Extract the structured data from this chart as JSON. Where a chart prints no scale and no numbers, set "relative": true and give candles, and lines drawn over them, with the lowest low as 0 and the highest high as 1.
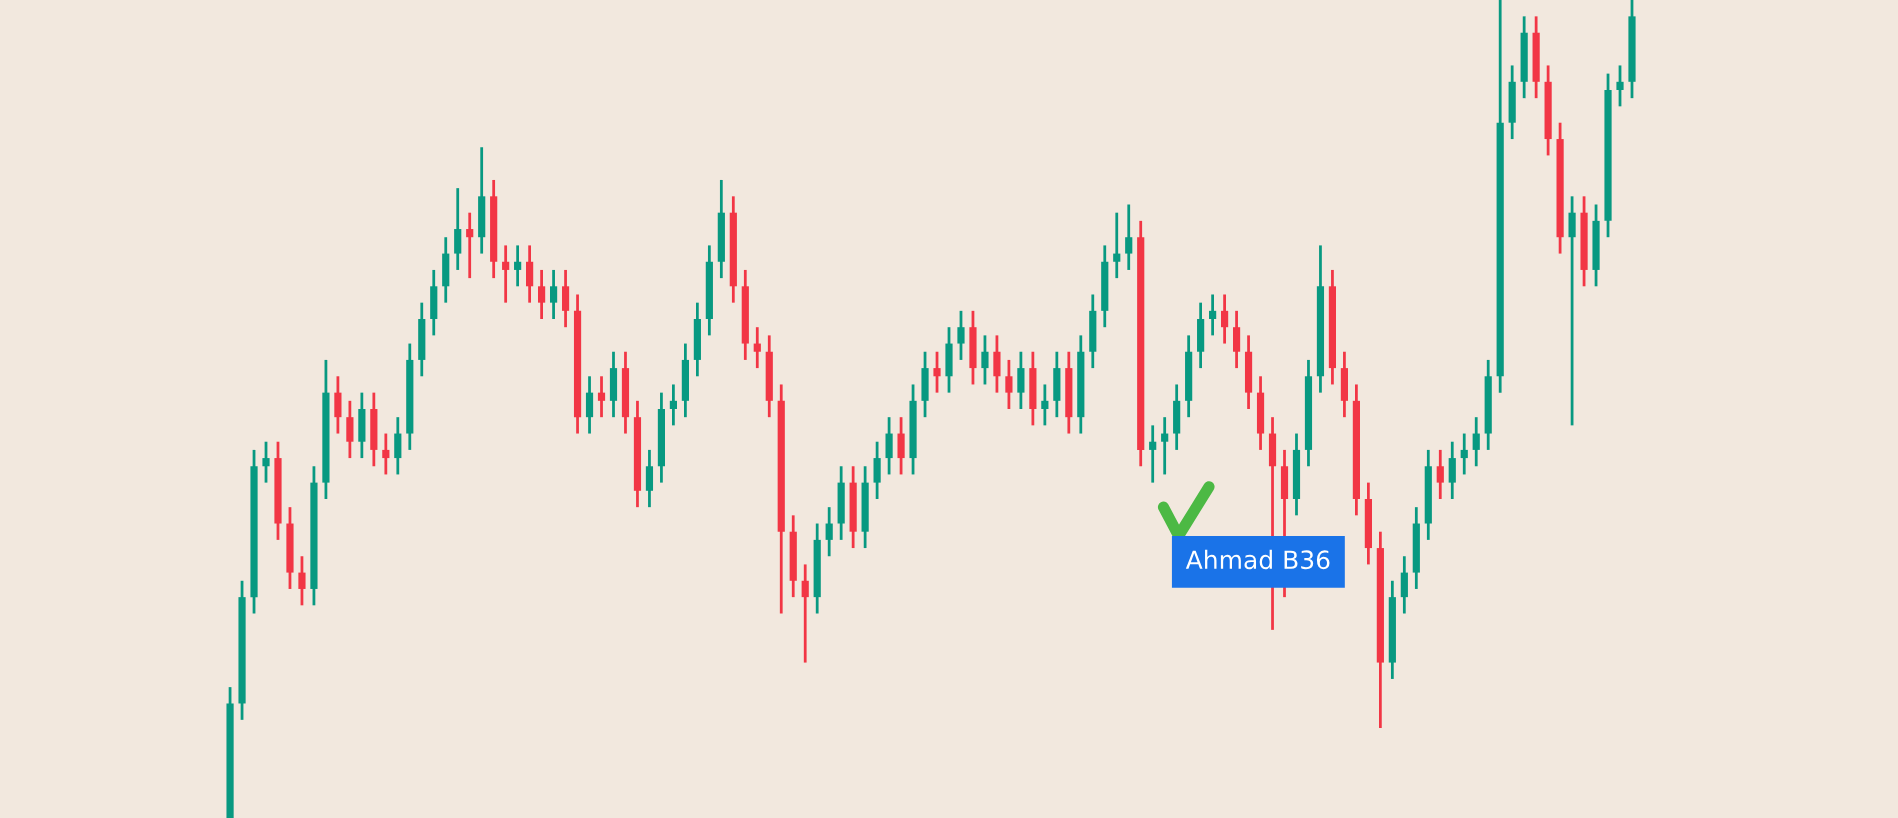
{
  "chart_data": {
    "type": "candlestick",
    "relative": true,
    "annotations": [
      "Ahmad B36"
    ],
    "categories": [
      null,
      null,
      null,
      null,
      null,
      null,
      null,
      null,
      null,
      null,
      null,
      null,
      null,
      null,
      null,
      null,
      null,
      null,
      null,
      null,
      null,
      null,
      null,
      null,
      null,
      null,
      null,
      null,
      null,
      null,
      null,
      null,
      null,
      null,
      null,
      null,
      null,
      null,
      null,
      null,
      null,
      null,
      null,
      null,
      null,
      null,
      null,
      null,
      null,
      null,
      null,
      null,
      null,
      null,
      null,
      null,
      null,
      null,
      null,
      null,
      null,
      null,
      null,
      null,
      null,
      null,
      null,
      null,
      null,
      null,
      null,
      null,
      null,
      null,
      null,
      null,
      null,
      null,
      null,
      null,
      null,
      null,
      null,
      null,
      null,
      null,
      null,
      null,
      null,
      null,
      null,
      null,
      null,
      null,
      null,
      null,
      null,
      null,
      null,
      null,
      null,
      null,
      null,
      null,
      null,
      null,
      null,
      null,
      null,
      null,
      null,
      null,
      null,
      null,
      null,
      null,
      null,
      null
    ],
    "ohlc": [
      [
        0,
        0.16,
        0,
        0.14
      ],
      [
        0.14,
        0.29,
        0.12,
        0.27
      ],
      [
        0.27,
        0.45,
        0.25,
        0.43
      ],
      [
        0.43,
        0.46,
        0.41,
        0.44
      ],
      [
        0.44,
        0.46,
        0.34,
        0.36
      ],
      [
        0.36,
        0.38,
        0.28,
        0.3
      ],
      [
        0.3,
        0.32,
        0.26,
        0.28
      ],
      [
        0.28,
        0.43,
        0.26,
        0.41
      ],
      [
        0.41,
        0.56,
        0.39,
        0.52
      ],
      [
        0.52,
        0.54,
        0.47,
        0.49
      ],
      [
        0.49,
        0.51,
        0.44,
        0.46
      ],
      [
        0.46,
        0.52,
        0.44,
        0.5
      ],
      [
        0.5,
        0.52,
        0.43,
        0.45
      ],
      [
        0.45,
        0.47,
        0.42,
        0.44
      ],
      [
        0.44,
        0.49,
        0.42,
        0.47
      ],
      [
        0.47,
        0.58,
        0.45,
        0.56
      ],
      [
        0.56,
        0.63,
        0.54,
        0.61
      ],
      [
        0.61,
        0.67,
        0.59,
        0.65
      ],
      [
        0.65,
        0.71,
        0.63,
        0.69
      ],
      [
        0.69,
        0.77,
        0.67,
        0.72
      ],
      [
        0.72,
        0.74,
        0.66,
        0.71
      ],
      [
        0.71,
        0.82,
        0.69,
        0.76
      ],
      [
        0.76,
        0.78,
        0.66,
        0.68
      ],
      [
        0.68,
        0.7,
        0.63,
        0.67
      ],
      [
        0.67,
        0.7,
        0.65,
        0.68
      ],
      [
        0.68,
        0.7,
        0.63,
        0.65
      ],
      [
        0.65,
        0.67,
        0.61,
        0.63
      ],
      [
        0.63,
        0.67,
        0.61,
        0.65
      ],
      [
        0.65,
        0.67,
        0.6,
        0.62
      ],
      [
        0.62,
        0.64,
        0.47,
        0.49
      ],
      [
        0.49,
        0.54,
        0.47,
        0.52
      ],
      [
        0.52,
        0.54,
        0.49,
        0.51
      ],
      [
        0.51,
        0.57,
        0.49,
        0.55
      ],
      [
        0.55,
        0.57,
        0.47,
        0.49
      ],
      [
        0.49,
        0.51,
        0.38,
        0.4
      ],
      [
        0.4,
        0.45,
        0.38,
        0.43
      ],
      [
        0.43,
        0.52,
        0.41,
        0.5
      ],
      [
        0.5,
        0.53,
        0.48,
        0.51
      ],
      [
        0.51,
        0.58,
        0.49,
        0.56
      ],
      [
        0.56,
        0.63,
        0.54,
        0.61
      ],
      [
        0.61,
        0.7,
        0.59,
        0.68
      ],
      [
        0.68,
        0.78,
        0.66,
        0.74
      ],
      [
        0.74,
        0.76,
        0.63,
        0.65
      ],
      [
        0.65,
        0.67,
        0.56,
        0.58
      ],
      [
        0.58,
        0.6,
        0.55,
        0.57
      ],
      [
        0.57,
        0.59,
        0.49,
        0.51
      ],
      [
        0.51,
        0.53,
        0.25,
        0.35
      ],
      [
        0.35,
        0.37,
        0.27,
        0.29
      ],
      [
        0.29,
        0.31,
        0.19,
        0.27
      ],
      [
        0.27,
        0.36,
        0.25,
        0.34
      ],
      [
        0.34,
        0.38,
        0.32,
        0.36
      ],
      [
        0.36,
        0.43,
        0.34,
        0.41
      ],
      [
        0.41,
        0.43,
        0.33,
        0.35
      ],
      [
        0.35,
        0.43,
        0.33,
        0.41
      ],
      [
        0.41,
        0.46,
        0.39,
        0.44
      ],
      [
        0.44,
        0.49,
        0.42,
        0.47
      ],
      [
        0.47,
        0.49,
        0.42,
        0.44
      ],
      [
        0.44,
        0.53,
        0.42,
        0.51
      ],
      [
        0.51,
        0.57,
        0.49,
        0.55
      ],
      [
        0.55,
        0.57,
        0.52,
        0.54
      ],
      [
        0.54,
        0.6,
        0.52,
        0.58
      ],
      [
        0.58,
        0.62,
        0.56,
        0.6
      ],
      [
        0.6,
        0.62,
        0.53,
        0.55
      ],
      [
        0.55,
        0.59,
        0.53,
        0.57
      ],
      [
        0.57,
        0.59,
        0.52,
        0.54
      ],
      [
        0.54,
        0.56,
        0.5,
        0.52
      ],
      [
        0.52,
        0.57,
        0.5,
        0.55
      ],
      [
        0.55,
        0.57,
        0.48,
        0.5
      ],
      [
        0.5,
        0.53,
        0.48,
        0.51
      ],
      [
        0.51,
        0.57,
        0.49,
        0.55
      ],
      [
        0.55,
        0.57,
        0.47,
        0.49
      ],
      [
        0.49,
        0.59,
        0.47,
        0.57
      ],
      [
        0.57,
        0.64,
        0.55,
        0.62
      ],
      [
        0.62,
        0.7,
        0.6,
        0.68
      ],
      [
        0.68,
        0.74,
        0.66,
        0.69
      ],
      [
        0.69,
        0.75,
        0.67,
        0.71
      ],
      [
        0.71,
        0.73,
        0.43,
        0.45
      ],
      [
        0.45,
        0.48,
        0.41,
        0.46
      ],
      [
        0.46,
        0.49,
        0.42,
        0.47
      ],
      [
        0.47,
        0.53,
        0.45,
        0.51
      ],
      [
        0.51,
        0.59,
        0.49,
        0.57
      ],
      [
        0.57,
        0.63,
        0.55,
        0.61
      ],
      [
        0.61,
        0.64,
        0.59,
        0.62
      ],
      [
        0.62,
        0.64,
        0.58,
        0.6
      ],
      [
        0.6,
        0.62,
        0.55,
        0.57
      ],
      [
        0.57,
        0.59,
        0.5,
        0.52
      ],
      [
        0.52,
        0.54,
        0.45,
        0.47
      ],
      [
        0.47,
        0.49,
        0.23,
        0.43
      ],
      [
        0.43,
        0.45,
        0.27,
        0.39
      ],
      [
        0.39,
        0.47,
        0.37,
        0.45
      ],
      [
        0.45,
        0.56,
        0.43,
        0.54
      ],
      [
        0.54,
        0.7,
        0.52,
        0.65
      ],
      [
        0.65,
        0.67,
        0.53,
        0.55
      ],
      [
        0.55,
        0.57,
        0.49,
        0.51
      ],
      [
        0.51,
        0.53,
        0.37,
        0.39
      ],
      [
        0.39,
        0.41,
        0.31,
        0.33
      ],
      [
        0.33,
        0.35,
        0.11,
        0.19
      ],
      [
        0.19,
        0.29,
        0.17,
        0.27
      ],
      [
        0.27,
        0.32,
        0.25,
        0.3
      ],
      [
        0.3,
        0.38,
        0.28,
        0.36
      ],
      [
        0.36,
        0.45,
        0.34,
        0.43
      ],
      [
        0.43,
        0.45,
        0.39,
        0.41
      ],
      [
        0.41,
        0.46,
        0.39,
        0.44
      ],
      [
        0.44,
        0.47,
        0.42,
        0.45
      ],
      [
        0.45,
        0.49,
        0.43,
        0.47
      ],
      [
        0.47,
        0.56,
        0.45,
        0.54
      ],
      [
        0.54,
        1.0,
        0.52,
        0.85
      ],
      [
        0.85,
        0.92,
        0.83,
        0.9
      ],
      [
        0.9,
        0.98,
        0.88,
        0.96
      ],
      [
        0.96,
        0.98,
        0.88,
        0.9
      ],
      [
        0.9,
        0.92,
        0.81,
        0.83
      ],
      [
        0.83,
        0.85,
        0.69,
        0.71
      ],
      [
        0.71,
        0.76,
        0.48,
        0.74
      ],
      [
        0.74,
        0.76,
        0.65,
        0.67
      ],
      [
        0.67,
        0.75,
        0.65,
        0.73
      ],
      [
        0.73,
        0.91,
        0.71,
        0.89
      ],
      [
        0.89,
        0.92,
        0.87,
        0.9
      ],
      [
        0.9,
        1.0,
        0.88,
        0.98
      ]
    ]
  }
}
